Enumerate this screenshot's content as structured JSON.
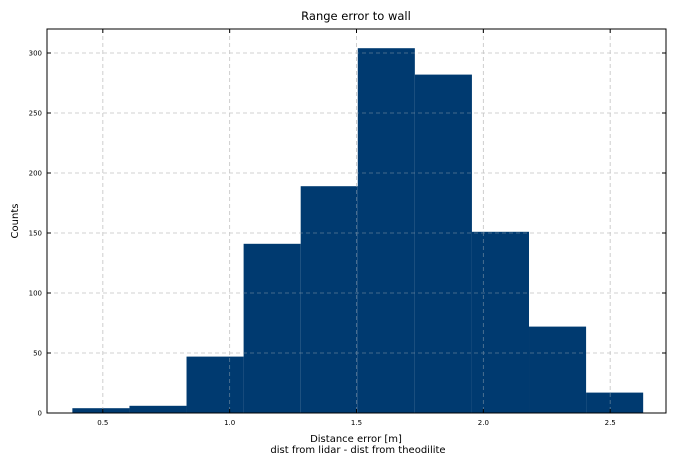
{
  "chart_data": {
    "type": "histogram",
    "title": "Range error to wall",
    "xlabel": "Distance error [m]",
    "xlabel_sub": "dist from lidar - dist from theodilite",
    "ylabel": "Counts",
    "xlim": [
      0.28,
      2.72
    ],
    "ylim": [
      0,
      320
    ],
    "xticks": [
      0.5,
      1.0,
      1.5,
      2.0,
      2.5
    ],
    "xtick_labels": [
      "0.5",
      "1.0",
      "1.5",
      "2.0",
      "2.5"
    ],
    "yticks": [
      0,
      50,
      100,
      150,
      200,
      250,
      300
    ],
    "ytick_labels": [
      "0",
      "50",
      "100",
      "150",
      "200",
      "250",
      "300"
    ],
    "grid": true,
    "bar_color": "#003a70",
    "bins": [
      {
        "x0": 0.38,
        "x1": 0.605,
        "count": 4
      },
      {
        "x0": 0.605,
        "x1": 0.83,
        "count": 6
      },
      {
        "x0": 0.83,
        "x1": 1.055,
        "count": 47
      },
      {
        "x0": 1.055,
        "x1": 1.28,
        "count": 141
      },
      {
        "x0": 1.28,
        "x1": 1.505,
        "count": 189
      },
      {
        "x0": 1.505,
        "x1": 1.73,
        "count": 304
      },
      {
        "x0": 1.73,
        "x1": 1.955,
        "count": 282
      },
      {
        "x0": 1.955,
        "x1": 2.18,
        "count": 151
      },
      {
        "x0": 2.18,
        "x1": 2.405,
        "count": 72
      },
      {
        "x0": 2.405,
        "x1": 2.63,
        "count": 17
      }
    ]
  }
}
